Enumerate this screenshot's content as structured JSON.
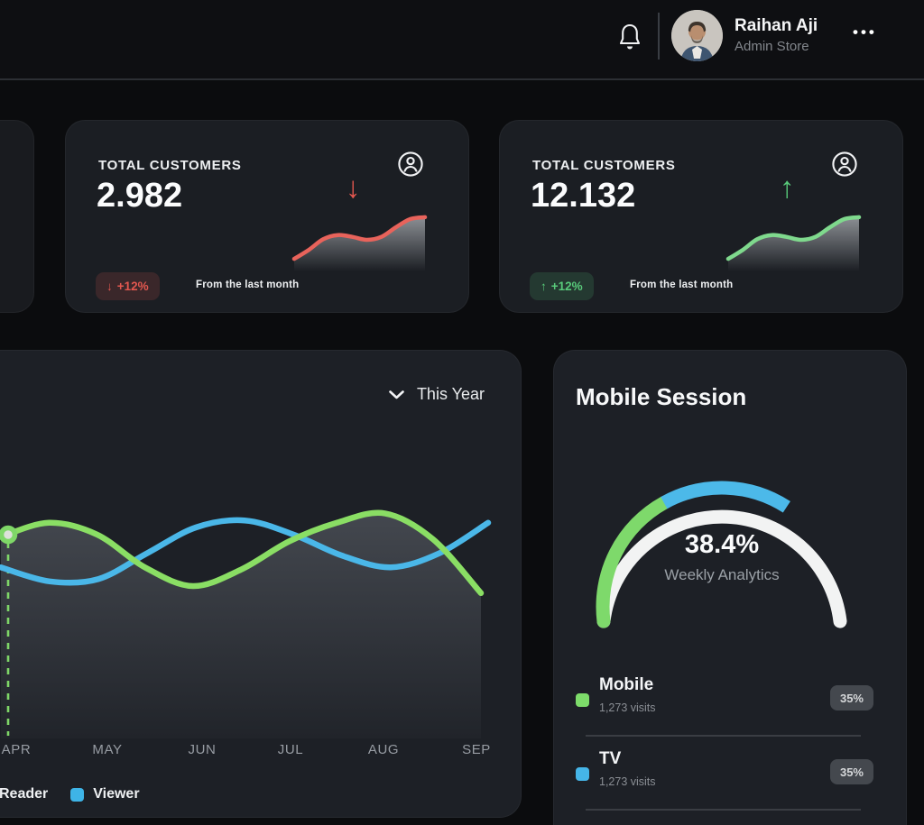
{
  "topbar": {
    "user_name": "Raihan Aji",
    "user_role": "Admin Store",
    "more_glyph": "•••"
  },
  "stat_cards": [
    {
      "title": "TOTAL CUSTOMERS",
      "value": "2.982",
      "trend": "down",
      "arrow_glyph": "↓",
      "badge_text": "+12%",
      "badge_note": "From the last month",
      "accent_color": "#e2574f",
      "badge_bg": "rgba(226,87,79,0.16)",
      "spark_values": [
        15,
        30,
        48,
        55,
        52,
        47,
        52,
        68,
        82,
        85
      ]
    },
    {
      "title": "TOTAL CUSTOMERS",
      "value": "12.132",
      "trend": "up",
      "arrow_glyph": "↑",
      "badge_text": "+12%",
      "badge_note": "From the last month",
      "accent_color": "#58c97a",
      "badge_bg": "rgba(88,201,122,0.16)",
      "spark_values": [
        15,
        30,
        48,
        55,
        52,
        47,
        52,
        68,
        82,
        85
      ]
    }
  ],
  "line_chart": {
    "type": "line",
    "filter_label": "This Year",
    "months": [
      "APR",
      "MAY",
      "JUN",
      "JUL",
      "AUG",
      "SEP"
    ],
    "legend": [
      {
        "label": "Reader",
        "color": "#8ade64"
      },
      {
        "label": "Viewer",
        "color": "#3eb4e7"
      }
    ],
    "series": [
      {
        "name": "Reader",
        "color": "#8ade64",
        "values": [
          86,
          92,
          87,
          73,
          65,
          72,
          84,
          92,
          96,
          85,
          62
        ]
      },
      {
        "name": "Viewer",
        "color": "#4ab7e8",
        "values": [
          73,
          67,
          68,
          79,
          90,
          93,
          87,
          78,
          73,
          79,
          92
        ]
      }
    ]
  },
  "mobile_session": {
    "title": "Mobile Session",
    "gauge": {
      "value": "38.4%",
      "caption": "Weekly Analytics",
      "segments": [
        {
          "name": "green",
          "color": "#7ed96b",
          "pct": 35
        },
        {
          "name": "blue",
          "color": "#4cb9e9",
          "pct": 32
        },
        {
          "name": "white",
          "color": "#f2f3f3",
          "pct": 33
        }
      ]
    },
    "items": [
      {
        "label": "Mobile",
        "visits": "1,273 visits",
        "percent": "35%",
        "color": "#7ddc6a"
      },
      {
        "label": "TV",
        "visits": "1,273 visits",
        "percent": "35%",
        "color": "#45b5e8"
      }
    ]
  }
}
